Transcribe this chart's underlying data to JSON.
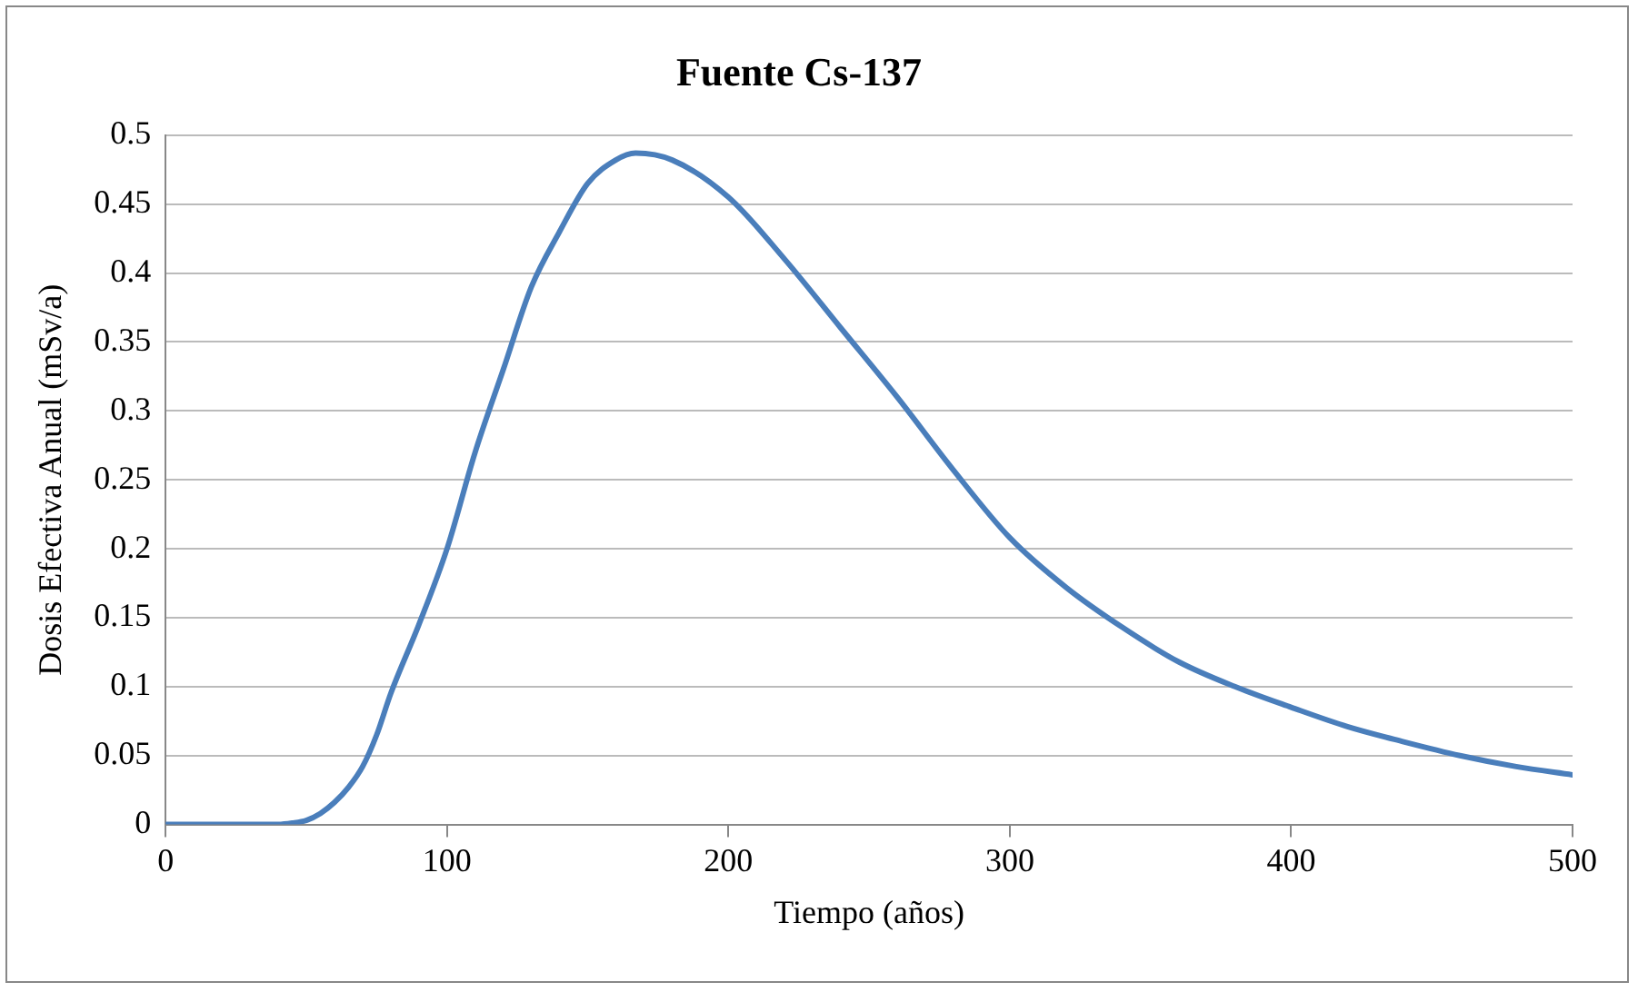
{
  "chart_data": {
    "type": "line",
    "title": "Fuente Cs-137",
    "xlabel": "Tiempo (años)",
    "ylabel": "Dosis Efectiva Anual (mSv/a)",
    "xlim": [
      0,
      500
    ],
    "xticks": [
      0,
      100,
      200,
      300,
      400,
      500
    ],
    "ylim": [
      0,
      0.5
    ],
    "yticks": [
      0,
      0.05,
      0.1,
      0.15,
      0.2,
      0.25,
      0.3,
      0.35,
      0.4,
      0.45,
      0.5
    ],
    "grid": "y",
    "legend": false,
    "marker": "none",
    "line_style": "solid",
    "series": [
      {
        "color": "#4a7ebb",
        "x": [
          0,
          20,
          40,
          45,
          50,
          55,
          60,
          65,
          70,
          75,
          80,
          90,
          100,
          110,
          120,
          130,
          140,
          150,
          160,
          167,
          180,
          200,
          220,
          240,
          260,
          280,
          300,
          320,
          340,
          360,
          380,
          400,
          420,
          440,
          460,
          480,
          500
        ],
        "values": [
          0,
          0,
          0,
          0.001,
          0.003,
          0.008,
          0.016,
          0.027,
          0.042,
          0.065,
          0.095,
          0.145,
          0.2,
          0.27,
          0.33,
          0.39,
          0.43,
          0.465,
          0.482,
          0.487,
          0.482,
          0.455,
          0.41,
          0.36,
          0.31,
          0.257,
          0.208,
          0.172,
          0.143,
          0.118,
          0.1,
          0.085,
          0.071,
          0.06,
          0.05,
          0.042,
          0.036
        ]
      }
    ]
  }
}
